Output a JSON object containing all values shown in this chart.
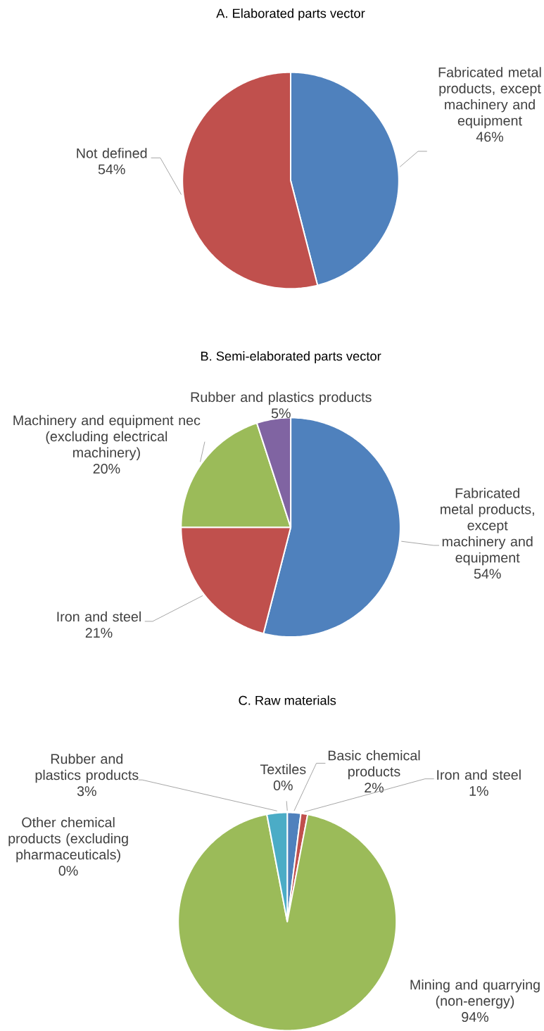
{
  "chart_data": [
    {
      "type": "pie",
      "title": "A. Elaborated parts vector",
      "categories": [
        "Fabricated metal products, except machinery and equipment",
        "Not defined"
      ],
      "values": [
        46,
        54
      ],
      "colors": [
        "#4f81bd",
        "#c0504d"
      ],
      "value_labels": [
        "46%",
        "54%"
      ]
    },
    {
      "type": "pie",
      "title": "B. Semi-elaborated parts vector",
      "categories": [
        "Fabricated metal products, except machinery and equipment",
        "Iron and steel",
        "Machinery and equipment nec (excluding electrical machinery)",
        "Rubber and plastics products"
      ],
      "values": [
        54,
        21,
        20,
        5
      ],
      "colors": [
        "#4f81bd",
        "#c0504d",
        "#9bbb59",
        "#8064a2"
      ],
      "value_labels": [
        "54%",
        "21%",
        "20%",
        "5%"
      ]
    },
    {
      "type": "pie",
      "title": "C. Raw materials",
      "categories": [
        "Basic chemical products",
        "Iron and steel",
        "Mining and quarrying (non-energy)",
        "Other chemical products (excluding pharmaceuticals)",
        "Rubber and plastics products",
        "Textiles"
      ],
      "values": [
        2,
        1,
        94,
        0,
        3,
        0
      ],
      "colors": [
        "#4f81bd",
        "#c0504d",
        "#9bbb59",
        null,
        "#4bacc6",
        null
      ],
      "value_labels": [
        "2%",
        "1%",
        "94%",
        "0%",
        "3%",
        "0%"
      ]
    }
  ]
}
